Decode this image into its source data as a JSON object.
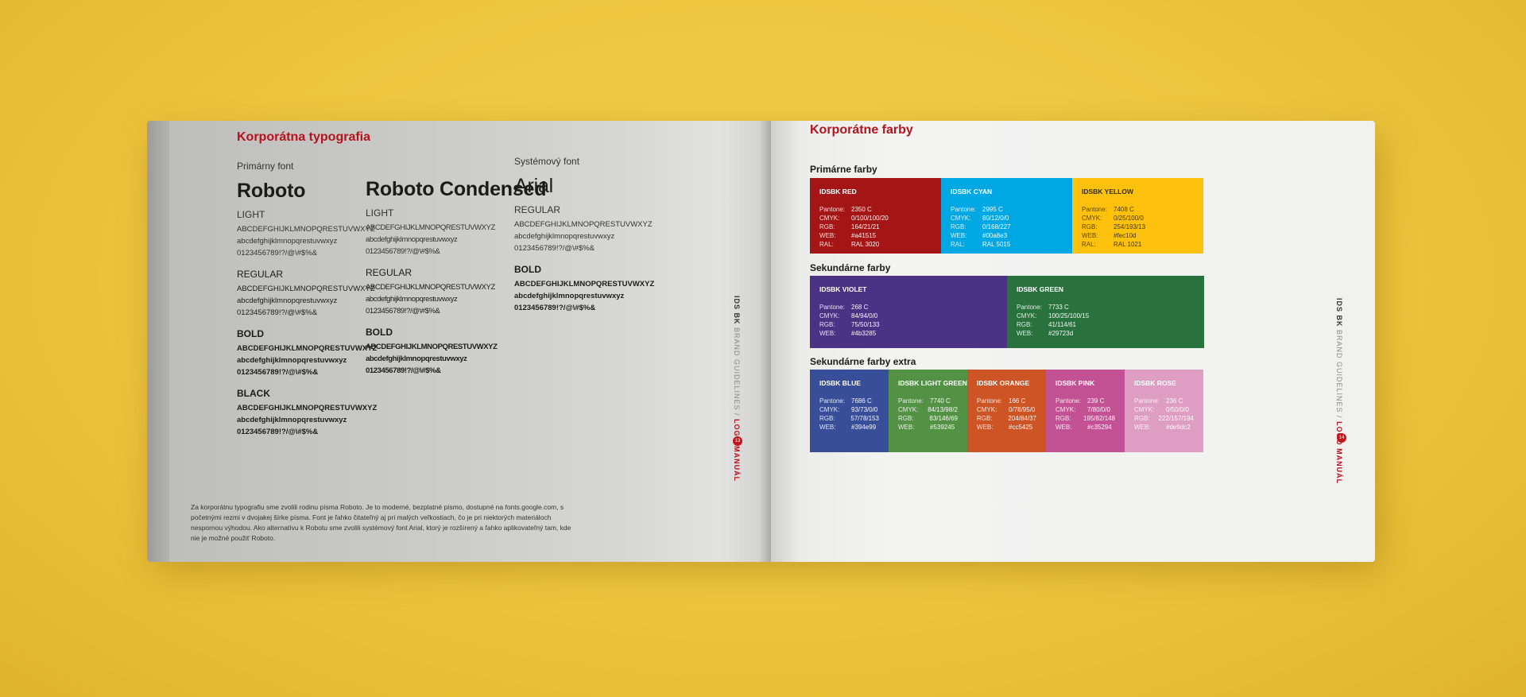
{
  "left_page": {
    "title": "Korporátna typografia",
    "primary_label": "Primárny font",
    "system_label": "Systémový font",
    "fonts": [
      {
        "name": "Roboto",
        "weights": [
          {
            "label": "LIGHT",
            "style": "light",
            "lines": [
              "ABCDEFGHIJKLMNOPQRESTUVWXYZ",
              "abcdefghijklmnopqrestuvwxyz",
              "0123456789!?/@\\#$%&"
            ]
          },
          {
            "label": "REGULAR",
            "style": "regular",
            "lines": [
              "ABCDEFGHIJKLMNOPQRESTUVWXYZ",
              "abcdefghijklmnopqrestuvwxyz",
              "0123456789!?/@\\#$%&"
            ]
          },
          {
            "label": "BOLD",
            "style": "bold",
            "lines": [
              "ABCDEFGHIJKLMNOPQRESTUVWXYZ",
              "abcdefghijklmnopqrestuvwxyz",
              "0123456789!?/@\\#$%&"
            ]
          },
          {
            "label": "BLACK",
            "style": "bold",
            "lines": [
              "ABCDEFGHIJKLMNOPQRESTUVWXYZ",
              "abcdefghijklmnopqrestuvwxyz",
              "0123456789!?/@\\#$%&"
            ]
          }
        ]
      },
      {
        "name": "Roboto Condensed",
        "weights": [
          {
            "label": "LIGHT",
            "style": "light",
            "lines": [
              "ABCDEFGHIJKLMNOPQRESTUVWXYZ",
              "abcdefghijklmnopqrestuvwxyz",
              "0123456789!?/@\\#$%&"
            ]
          },
          {
            "label": "REGULAR",
            "style": "regular",
            "lines": [
              "ABCDEFGHIJKLMNOPQRESTUVWXYZ",
              "abcdefghijklmnopqrestuvwxyz",
              "0123456789!?/@\\#$%&"
            ]
          },
          {
            "label": "BOLD",
            "style": "bold",
            "lines": [
              "ABCDEFGHIJKLMNOPQRESTUVWXYZ",
              "abcdefghijklmnopqrestuvwxyz",
              "0123456789!?/@\\#$%&"
            ]
          }
        ]
      },
      {
        "name": "Arial",
        "weights": [
          {
            "label": "REGULAR",
            "style": "light",
            "lines": [
              "ABCDEFGHIJKLMNOPQRESTUVWXYZ",
              "abcdefghijklmnopqrestuvwxyz",
              "0123456789!?/@\\#$%&"
            ]
          },
          {
            "label": "BOLD",
            "style": "bold",
            "lines": [
              "ABCDEFGHIJKLMNOPQRESTUVWXYZ",
              "abcdefghijklmnopqrestuvwxyz",
              "0123456789!?/@\\#$%&"
            ]
          }
        ]
      }
    ],
    "paragraph": "Za korporátnu typografiu sme zvolili rodinu písma Roboto. Je to moderné, bezplatné písmo, dostupné na fonts.google.com, s početnými rezmi v dvojakej šírke písma. Font je ľahko čitateľný aj pri malých veľkostiach, čo je pri niektorých materiáloch nespornou výhodou. Ako alternatívu k Robotu sme zvolili systémový font Arial, ktorý je rozšírený a ľahko aplikovateľný tam, kde nie je možné použiť Roboto.",
    "side_label": {
      "a": "IDS BK",
      "b": "BRAND GUIDELINES /",
      "c": "LOGO MANUÁL"
    },
    "page_number": "13"
  },
  "right_page": {
    "title": "Korporátne farby",
    "groups": [
      {
        "name": "Primárne farby",
        "swatches": [
          {
            "name": "IDSBK RED",
            "color": "#a41515",
            "pantone": "2350 C",
            "cmyk": "0/100/100/20",
            "rgb": "164/21/21",
            "web": "#a41515",
            "ral": "RAL 3020"
          },
          {
            "name": "IDSBK CYAN",
            "color": "#00a8e3",
            "pantone": "2995 C",
            "cmyk": "80/12/0/0",
            "rgb": "0/168/227",
            "web": "#00a8e3",
            "ral": "RAL 5015"
          },
          {
            "name": "IDSBK YELLOW",
            "color": "#fec10d",
            "pantone": "7408 C",
            "cmyk": "0/25/100/0",
            "rgb": "254/193/13",
            "web": "#fec10d",
            "ral": "RAL 1021"
          }
        ]
      },
      {
        "name": "Sekundárne farby",
        "swatches": [
          {
            "name": "IDSBK VIOLET",
            "color": "#4b3285",
            "pantone": "268 C",
            "cmyk": "84/94/0/0",
            "rgb": "75/50/133",
            "web": "#4b3285"
          },
          {
            "name": "IDSBK GREEN",
            "color": "#29723d",
            "pantone": "7733 C",
            "cmyk": "100/25/100/15",
            "rgb": "41/114/61",
            "web": "#29723d"
          }
        ]
      },
      {
        "name": "Sekundárne farby extra",
        "swatches": [
          {
            "name": "IDSBK BLUE",
            "color": "#394e99",
            "pantone": "7686 C",
            "cmyk": "93/73/0/0",
            "rgb": "57/78/153",
            "web": "#394e99"
          },
          {
            "name": "IDSBK LIGHT GREEN",
            "color": "#539245",
            "pantone": "7740 C",
            "cmyk": "84/13/98/2",
            "rgb": "83/146/69",
            "web": "#539245"
          },
          {
            "name": "IDSBK ORANGE",
            "color": "#cc5425",
            "pantone": "166 C",
            "cmyk": "0/78/95/0",
            "rgb": "204/84/37",
            "web": "#cc5425"
          },
          {
            "name": "IDSBK PINK",
            "color": "#c35294",
            "pantone": "239 C",
            "cmyk": "7/80/0/0",
            "rgb": "195/82/148",
            "web": "#c35294"
          },
          {
            "name": "IDSBK ROSE",
            "color": "#de9dc2",
            "pantone": "236 C",
            "cmyk": "0/50/0/0",
            "rgb": "222/157/194",
            "web": "#de9dc2"
          }
        ]
      }
    ],
    "keys": {
      "pantone": "Pantone:",
      "cmyk": "CMYK:",
      "rgb": "RGB:",
      "web": "WEB:",
      "ral": "RAL:"
    },
    "side_label": {
      "a": "IDS BK",
      "b": "BRAND GUIDELINES /",
      "c": "LOGO MANUÁL"
    },
    "page_number": "14"
  }
}
